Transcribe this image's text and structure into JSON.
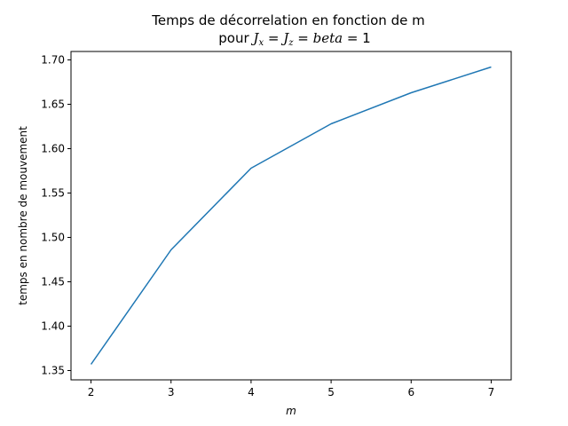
{
  "chart_data": {
    "type": "line",
    "title_line1": "Temps de décorrelation en fonction de m",
    "title_line2_prefix": "pour ",
    "title_line2_math": "J",
    "title_line2_sub1": "x",
    "title_line2_eq1": " = ",
    "title_line2_math2": "J",
    "title_line2_sub2": "z",
    "title_line2_eq2": " = ",
    "title_line2_math3": "beta",
    "title_line2_eq3": " = 1",
    "xlabel": "m",
    "ylabel": "temps en nombre de mouvement",
    "x": [
      2,
      3,
      4,
      5,
      6,
      7
    ],
    "series": [
      {
        "values": [
          1.357,
          1.486,
          1.578,
          1.628,
          1.663,
          1.692
        ],
        "color": "#1f77b4"
      }
    ],
    "xlim": [
      1.75,
      7.25
    ],
    "ylim": [
      1.3395,
      1.7095
    ],
    "xticks": [
      "2",
      "3",
      "4",
      "5",
      "6",
      "7"
    ],
    "yticks": [
      "1.35",
      "1.40",
      "1.45",
      "1.50",
      "1.55",
      "1.60",
      "1.65",
      "1.70"
    ],
    "grid": false,
    "legend": "none"
  }
}
